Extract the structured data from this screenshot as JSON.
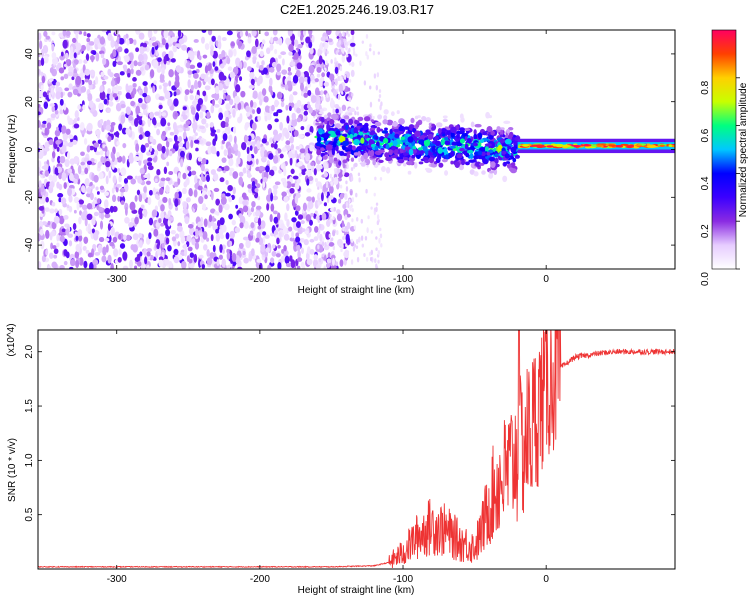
{
  "title": "C2E1.2025.246.19.03.R17",
  "chart_data": [
    {
      "type": "heatmap",
      "xlabel": "Height of straight line (km)",
      "ylabel": "Frequency (Hz)",
      "xlim": [
        -355,
        90
      ],
      "ylim": [
        -50,
        50
      ],
      "xticks": [
        -300,
        -200,
        -100,
        0
      ],
      "xtick_labels": [
        "-300",
        "-200",
        "-100",
        "0"
      ],
      "yticks": [
        -40,
        -20,
        0,
        20,
        40
      ],
      "ytick_labels": [
        "-40",
        "-20",
        "0",
        "20",
        "40"
      ],
      "colorbar": {
        "label": "Normalized spectral amplitude",
        "range": [
          0,
          1
        ],
        "ticks": [
          0.0,
          0.2,
          0.4,
          0.6,
          0.8
        ],
        "tick_labels": [
          "0.0",
          "0.2",
          "0.4",
          "0.6",
          "0.8"
        ],
        "colors": [
          "#ffffff",
          "#e6ccff",
          "#8a2be2",
          "#3b00ff",
          "#0000ff",
          "#00c8ff",
          "#00ff80",
          "#c8ff00",
          "#ffd000",
          "#ff4000",
          "#ff0060"
        ]
      },
      "regions": [
        {
          "name": "noise",
          "x_range": [
            -355,
            -150
          ],
          "freq_range": [
            -50,
            50
          ],
          "amplitude": 0.1
        },
        {
          "name": "noise-fringe",
          "x_range": [
            -150,
            -130
          ],
          "freq_range": [
            -50,
            50
          ],
          "amplitude": 0.03
        },
        {
          "name": "signal-onset",
          "x_range": [
            -160,
            -20
          ],
          "center_freq": [
            5,
            0
          ],
          "spread_hz": 8,
          "amplitude": 0.4
        },
        {
          "name": "carrier",
          "x_range": [
            -20,
            90
          ],
          "center_freq": [
            1.5,
            1.5
          ],
          "spread_hz": 1.5,
          "amplitude": 0.9
        }
      ]
    },
    {
      "type": "line",
      "xlabel": "Height of straight line (km)",
      "ylabel": "SNR (10 * v/v)",
      "y_multiplier": "(x10^4)",
      "xlim": [
        -355,
        90
      ],
      "ylim": [
        0,
        2.2
      ],
      "xticks": [
        -300,
        -200,
        -100,
        0
      ],
      "xtick_labels": [
        "-300",
        "-200",
        "-100",
        "0"
      ],
      "yticks": [
        0.5,
        1.0,
        1.5,
        2.0
      ],
      "ytick_labels": [
        "0.5",
        "1.0",
        "1.5",
        "2.0"
      ],
      "color": "#ee3333",
      "series": [
        {
          "name": "SNR",
          "x": [
            -355,
            -300,
            -250,
            -200,
            -150,
            -120,
            -110,
            -100,
            -90,
            -80,
            -70,
            -60,
            -50,
            -45,
            -40,
            -35,
            -30,
            -25,
            -20,
            -15,
            -10,
            -5,
            0,
            10,
            20,
            30,
            40,
            50,
            60,
            70,
            80,
            90
          ],
          "y": [
            0.02,
            0.02,
            0.02,
            0.02,
            0.02,
            0.03,
            0.06,
            0.15,
            0.3,
            0.4,
            0.35,
            0.25,
            0.2,
            0.35,
            0.6,
            0.75,
            0.85,
            0.95,
            1.05,
            1.15,
            1.3,
            1.5,
            1.7,
            1.85,
            1.95,
            1.97,
            1.99,
            2.0,
            2.0,
            2.0,
            2.0,
            2.0
          ]
        }
      ],
      "spike": {
        "x": -19,
        "y": 2.2
      }
    }
  ]
}
